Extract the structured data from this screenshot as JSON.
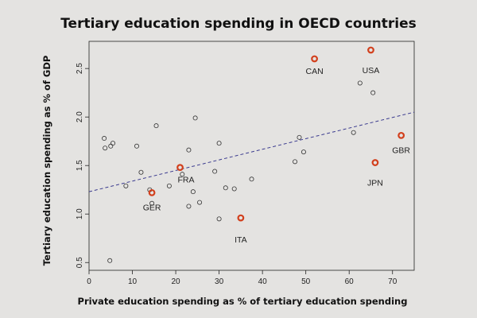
{
  "chart_data": {
    "type": "scatter",
    "title": "Tertiary education spending in OECD countries",
    "xlabel": "Private education spending as % of tertiary education spending",
    "ylabel": "Tertiary education spending as % of GDP",
    "xlim": [
      0,
      75
    ],
    "ylim": [
      0.42,
      2.78
    ],
    "xticks": [
      0,
      10,
      20,
      30,
      40,
      50,
      60,
      70
    ],
    "yticks": [
      0.5,
      1.0,
      1.5,
      2.0,
      2.5
    ],
    "ytick_labels": [
      "0.5",
      "1.0",
      "1.5",
      "2.0",
      "2.5"
    ],
    "grid": false,
    "colors": {
      "other": "#333333",
      "highlight": "#d2401d",
      "trend": "#3b3b8f"
    },
    "trend_line": {
      "style": "dashed",
      "x": [
        0,
        75
      ],
      "y": [
        1.23,
        2.05
      ]
    },
    "highlighted": [
      {
        "name": "CAN",
        "x": 52,
        "y": 2.6
      },
      {
        "name": "USA",
        "x": 65,
        "y": 2.69
      },
      {
        "name": "GBR",
        "x": 72,
        "y": 1.81
      },
      {
        "name": "JPN",
        "x": 66,
        "y": 1.53
      },
      {
        "name": "FRA",
        "x": 21,
        "y": 1.48
      },
      {
        "name": "GER",
        "x": 14.5,
        "y": 1.22
      },
      {
        "name": "ITA",
        "x": 35,
        "y": 0.96
      }
    ],
    "others": [
      {
        "x": 3.5,
        "y": 1.78
      },
      {
        "x": 3.7,
        "y": 1.68
      },
      {
        "x": 5.5,
        "y": 1.73
      },
      {
        "x": 5,
        "y": 1.7
      },
      {
        "x": 4.8,
        "y": 0.52
      },
      {
        "x": 8.5,
        "y": 1.29
      },
      {
        "x": 11,
        "y": 1.7
      },
      {
        "x": 12,
        "y": 1.43
      },
      {
        "x": 14,
        "y": 1.25
      },
      {
        "x": 14.5,
        "y": 1.11
      },
      {
        "x": 15.5,
        "y": 1.91
      },
      {
        "x": 18.5,
        "y": 1.29
      },
      {
        "x": 21.5,
        "y": 1.41
      },
      {
        "x": 23,
        "y": 1.66
      },
      {
        "x": 23,
        "y": 1.08
      },
      {
        "x": 24,
        "y": 1.23
      },
      {
        "x": 24.5,
        "y": 1.99
      },
      {
        "x": 25.5,
        "y": 1.12
      },
      {
        "x": 29,
        "y": 1.44
      },
      {
        "x": 30,
        "y": 1.73
      },
      {
        "x": 30,
        "y": 0.95
      },
      {
        "x": 31.5,
        "y": 1.27
      },
      {
        "x": 33.5,
        "y": 1.26
      },
      {
        "x": 37.5,
        "y": 1.36
      },
      {
        "x": 47.5,
        "y": 1.54
      },
      {
        "x": 48.5,
        "y": 1.79
      },
      {
        "x": 49.5,
        "y": 1.64
      },
      {
        "x": 61,
        "y": 1.84
      },
      {
        "x": 62.5,
        "y": 2.35
      },
      {
        "x": 65.5,
        "y": 2.25
      }
    ]
  }
}
